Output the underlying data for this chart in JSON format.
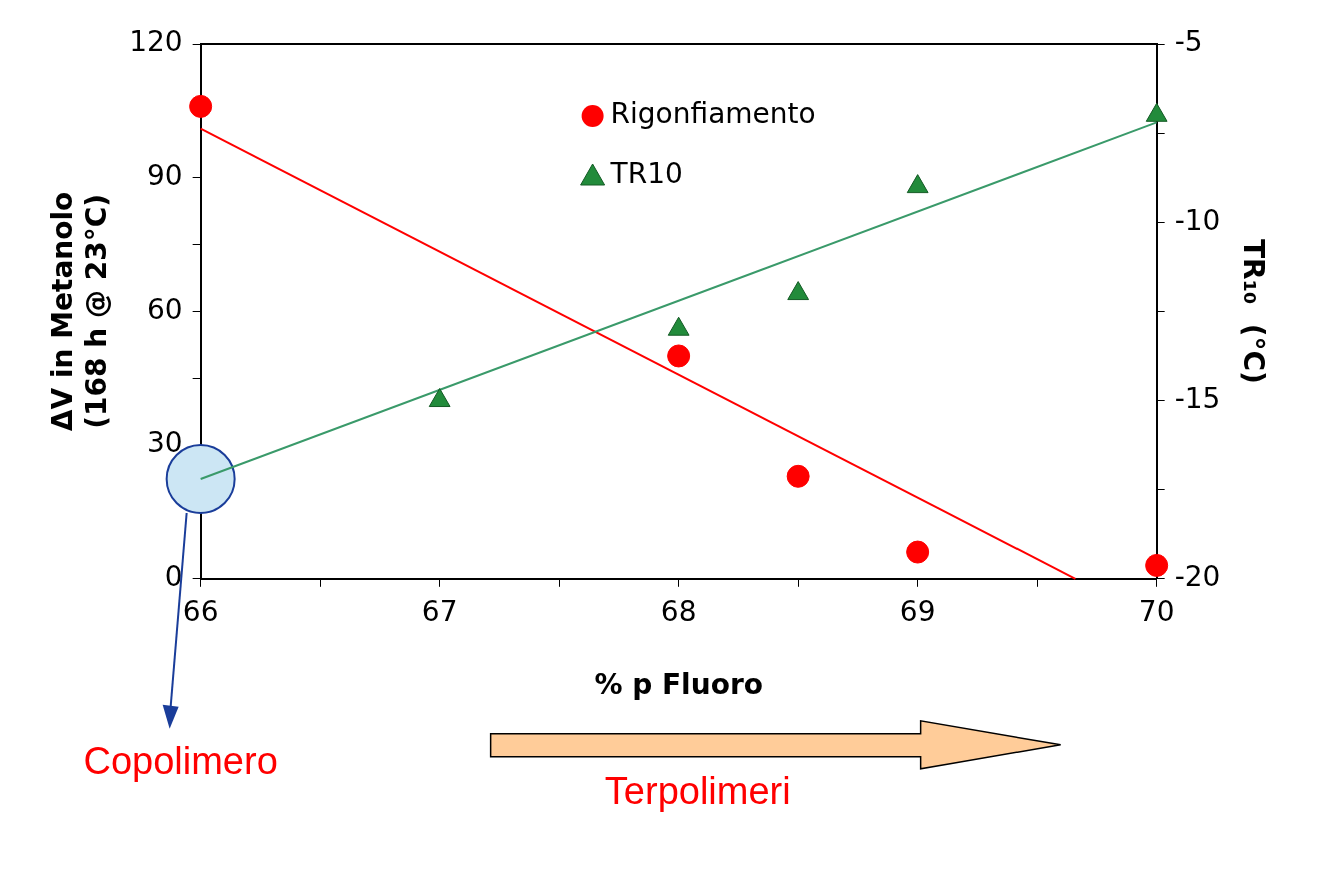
{
  "chart_data": {
    "type": "scatter",
    "xlabel": "% p Fluoro",
    "ylabel": [
      "ΔV in Metanolo",
      "(168 h @ 23°C)"
    ],
    "y2label": "TR₁₀  (°C)",
    "xlim": [
      66,
      70
    ],
    "xticks": [
      66,
      {
        "value": 66.5,
        "label": null
      },
      67,
      {
        "value": 67.5,
        "label": null
      },
      68,
      {
        "value": 68.5,
        "label": null
      },
      69,
      {
        "value": 69.5,
        "label": null
      },
      70
    ],
    "ylim": [
      0,
      120
    ],
    "yticks": [
      0,
      {
        "value": 15,
        "label": null
      },
      30,
      {
        "value": 45,
        "label": null
      },
      60,
      {
        "value": 75,
        "label": null
      },
      90,
      {
        "value": 105,
        "label": null
      },
      120
    ],
    "y2lim": [
      -20,
      -5
    ],
    "y2ticks": [
      -20,
      {
        "value": -17.5,
        "label": null
      },
      -15,
      {
        "value": -12.5,
        "label": null
      },
      -10,
      {
        "value": -7.5,
        "label": null
      },
      -5
    ],
    "grid": false,
    "legend": "top",
    "series": [
      {
        "type": "line",
        "color": "#ff0000",
        "x": [
          66,
          69.66
        ],
        "values": [
          101,
          0
        ],
        "marker": "none"
      },
      {
        "type": "line",
        "color": "#3a9a6a",
        "axis": "y2",
        "x": [
          66,
          70
        ],
        "values": [
          -17.2,
          -7.2
        ],
        "marker": "none"
      },
      {
        "type": "bubble",
        "color": "#cce6f4",
        "axis": "y2",
        "x": [
          66
        ],
        "values": [
          -17.2
        ],
        "sizes": [
          1
        ]
      },
      {
        "name": "Rigonfiamento",
        "color": "#ff0000",
        "marker": "circle",
        "x": [
          66,
          68,
          68.5,
          69,
          70
        ],
        "values": [
          106,
          50,
          23,
          6,
          3
        ]
      },
      {
        "name": "TR10",
        "color": "#228b3b",
        "marker": "triangle",
        "axis": "y2",
        "x": [
          67,
          68,
          68.5,
          69,
          70
        ],
        "values": [
          -15,
          -13,
          -12,
          -9,
          -7
        ]
      }
    ],
    "annotations": [
      "Copolimero",
      "Terpolimeri"
    ]
  }
}
